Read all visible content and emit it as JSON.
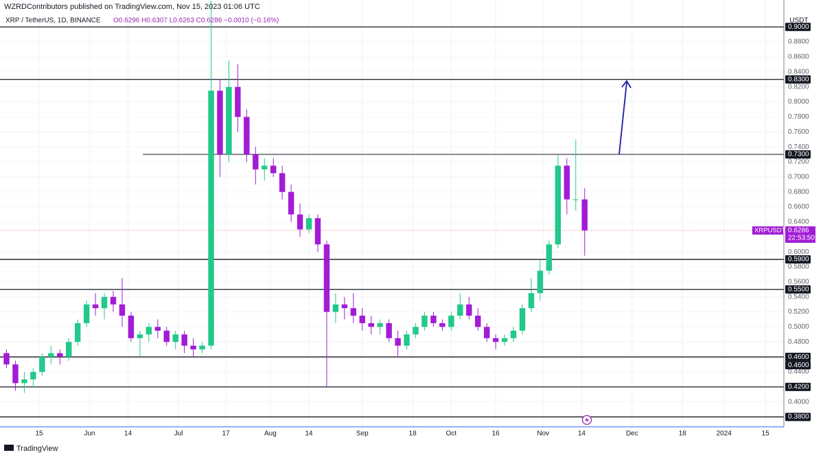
{
  "header": {
    "publisher": "WZRDContributors published on TradingView.com, Nov 15, 2023 01:06 UTC",
    "brand": "TradingView"
  },
  "chart_data": {
    "type": "candlestick",
    "symbol": "XRP / TetherUS, 1D, BINANCE",
    "ohlc_text": "O0.6296 H0.6307 L0.6263 C0.6286 −0.0010 (−0.16%)",
    "currency": "USDT",
    "up_color": "#22c98a",
    "down_color": "#a21cd6",
    "xlim": [
      0.8,
      265.2
    ],
    "xticks": [
      {
        "value": 14,
        "label": "15"
      },
      {
        "value": 31,
        "label": "Jun"
      },
      {
        "value": 44,
        "label": "14"
      },
      {
        "value": 61,
        "label": "Jul"
      },
      {
        "value": 77,
        "label": "17"
      },
      {
        "value": 92,
        "label": "Aug"
      },
      {
        "value": 105,
        "label": "14"
      },
      {
        "value": 123,
        "label": "Sep"
      },
      {
        "value": 140,
        "label": "18"
      },
      {
        "value": 153,
        "label": "Oct"
      },
      {
        "value": 168,
        "label": "16"
      },
      {
        "value": 184,
        "label": "Nov"
      },
      {
        "value": 197,
        "label": "14"
      },
      {
        "value": 214,
        "label": "Dec"
      },
      {
        "value": 231,
        "label": "18"
      },
      {
        "value": 245,
        "label": "2024"
      },
      {
        "value": 259,
        "label": "15"
      }
    ],
    "ylim": [
      0.3668,
      0.9359
    ],
    "yticks": [
      {
        "value": 0.88,
        "label": "0.8800"
      },
      {
        "value": 0.86,
        "label": "0.8600"
      },
      {
        "value": 0.84,
        "label": "0.8400"
      },
      {
        "value": 0.82,
        "label": "0.8200"
      },
      {
        "value": 0.8,
        "label": "0.8000"
      },
      {
        "value": 0.78,
        "label": "0.7800"
      },
      {
        "value": 0.76,
        "label": "0.7600"
      },
      {
        "value": 0.74,
        "label": "0.7400"
      },
      {
        "value": 0.72,
        "label": "0.7200"
      },
      {
        "value": 0.7,
        "label": "0.7000"
      },
      {
        "value": 0.68,
        "label": "0.6800"
      },
      {
        "value": 0.66,
        "label": "0.6600"
      },
      {
        "value": 0.64,
        "label": "0.6400"
      },
      {
        "value": 0.6,
        "label": "0.6000"
      },
      {
        "value": 0.58,
        "label": "0.5800"
      },
      {
        "value": 0.56,
        "label": "0.5600"
      },
      {
        "value": 0.54,
        "label": "0.5400"
      },
      {
        "value": 0.52,
        "label": "0.5200"
      },
      {
        "value": 0.5,
        "label": "0.5000"
      },
      {
        "value": 0.48,
        "label": "0.4800"
      },
      {
        "value": 0.44,
        "label": "0.4400"
      },
      {
        "value": 0.4,
        "label": "0.4000"
      }
    ],
    "levels": [
      {
        "value": 0.9,
        "label": "0.9000"
      },
      {
        "value": 0.83,
        "label": "0.8300"
      },
      {
        "value": 0.73,
        "label": "0.7300",
        "start": 49
      },
      {
        "value": 0.59,
        "label": "0.5900"
      },
      {
        "value": 0.55,
        "label": "0.5500"
      },
      {
        "value": 0.46,
        "label": "0.4600"
      },
      {
        "value": 0.46,
        "label": "0.4600"
      },
      {
        "value": 0.42,
        "label": "0.4200"
      },
      {
        "value": 0.38,
        "label": "0.3800"
      }
    ],
    "last_price": {
      "symbol": "XRPUSDT",
      "value": 0.6286,
      "countdown": "22:53:50"
    },
    "candles": {
      "x": [
        3,
        6,
        9,
        12,
        15,
        18,
        21,
        24,
        27,
        30,
        33,
        36,
        39,
        42,
        45,
        48,
        51,
        54,
        57,
        60,
        63,
        66,
        69,
        72,
        75,
        78,
        81,
        84,
        87,
        90,
        93,
        96,
        99,
        102,
        105,
        108,
        111,
        114,
        117,
        120,
        123,
        126,
        129,
        132,
        135,
        138,
        141,
        144,
        147,
        150,
        153,
        156,
        159,
        162,
        165,
        168,
        171,
        174,
        177,
        180,
        183,
        186,
        189,
        192,
        195,
        198
      ],
      "open": [
        0.465,
        0.45,
        0.425,
        0.43,
        0.44,
        0.46,
        0.465,
        0.46,
        0.48,
        0.505,
        0.53,
        0.525,
        0.54,
        0.53,
        0.515,
        0.485,
        0.49,
        0.5,
        0.495,
        0.48,
        0.49,
        0.475,
        0.47,
        0.475,
        0.815,
        0.73,
        0.82,
        0.78,
        0.73,
        0.71,
        0.715,
        0.705,
        0.68,
        0.65,
        0.63,
        0.645,
        0.61,
        0.52,
        0.53,
        0.525,
        0.515,
        0.505,
        0.5,
        0.505,
        0.485,
        0.475,
        0.49,
        0.5,
        0.515,
        0.505,
        0.5,
        0.515,
        0.53,
        0.515,
        0.5,
        0.485,
        0.48,
        0.485,
        0.495,
        0.525,
        0.545,
        0.575,
        0.61,
        0.715,
        0.67,
        0.67
      ],
      "high": [
        0.47,
        0.455,
        0.44,
        0.445,
        0.465,
        0.475,
        0.47,
        0.485,
        0.51,
        0.535,
        0.545,
        0.545,
        0.548,
        0.565,
        0.52,
        0.495,
        0.505,
        0.51,
        0.5,
        0.495,
        0.495,
        0.485,
        0.48,
        0.935,
        0.83,
        0.855,
        0.85,
        0.79,
        0.74,
        0.725,
        0.725,
        0.715,
        0.69,
        0.665,
        0.65,
        0.65,
        0.615,
        0.545,
        0.54,
        0.545,
        0.525,
        0.515,
        0.51,
        0.51,
        0.495,
        0.495,
        0.505,
        0.52,
        0.52,
        0.51,
        0.52,
        0.545,
        0.54,
        0.525,
        0.505,
        0.49,
        0.49,
        0.5,
        0.53,
        0.565,
        0.59,
        0.615,
        0.73,
        0.725,
        0.75,
        0.685
      ],
      "low": [
        0.445,
        0.415,
        0.412,
        0.42,
        0.435,
        0.45,
        0.45,
        0.455,
        0.475,
        0.5,
        0.515,
        0.51,
        0.52,
        0.5,
        0.48,
        0.46,
        0.48,
        0.485,
        0.475,
        0.47,
        0.465,
        0.46,
        0.465,
        0.47,
        0.7,
        0.72,
        0.76,
        0.72,
        0.69,
        0.695,
        0.7,
        0.67,
        0.64,
        0.62,
        0.625,
        0.6,
        0.42,
        0.505,
        0.51,
        0.505,
        0.495,
        0.49,
        0.49,
        0.48,
        0.46,
        0.47,
        0.485,
        0.495,
        0.5,
        0.495,
        0.495,
        0.51,
        0.51,
        0.495,
        0.48,
        0.47,
        0.475,
        0.48,
        0.49,
        0.52,
        0.535,
        0.57,
        0.605,
        0.65,
        0.655,
        0.595
      ],
      "close": [
        0.45,
        0.425,
        0.43,
        0.44,
        0.46,
        0.465,
        0.46,
        0.48,
        0.505,
        0.53,
        0.525,
        0.54,
        0.53,
        0.515,
        0.485,
        0.49,
        0.5,
        0.495,
        0.48,
        0.49,
        0.475,
        0.47,
        0.475,
        0.815,
        0.73,
        0.82,
        0.78,
        0.73,
        0.71,
        0.715,
        0.705,
        0.68,
        0.65,
        0.63,
        0.645,
        0.61,
        0.52,
        0.53,
        0.525,
        0.515,
        0.505,
        0.5,
        0.505,
        0.485,
        0.475,
        0.49,
        0.5,
        0.515,
        0.505,
        0.5,
        0.515,
        0.53,
        0.515,
        0.5,
        0.485,
        0.48,
        0.485,
        0.495,
        0.525,
        0.545,
        0.575,
        0.61,
        0.715,
        0.67,
        0.67,
        0.6286
      ]
    }
  }
}
